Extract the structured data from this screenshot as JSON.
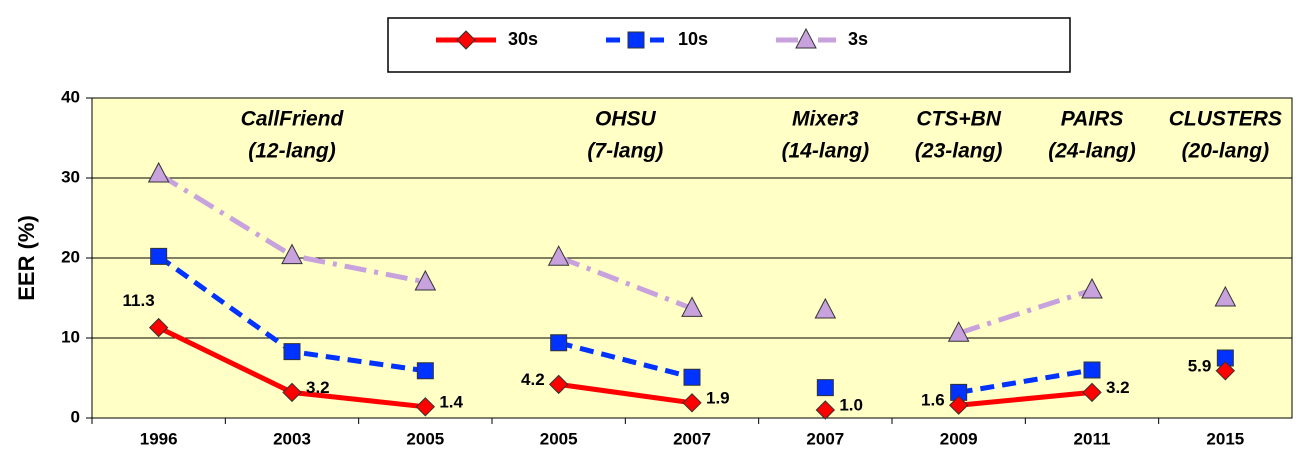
{
  "chart_data": {
    "type": "line",
    "y_label": "EER (%)",
    "categories": [
      "1996",
      "2003",
      "2005",
      "2005",
      "2007",
      "2007",
      "2009",
      "2011",
      "2015"
    ],
    "segments": [
      [
        0,
        2
      ],
      [
        3,
        4
      ],
      [
        5,
        5
      ],
      [
        6,
        7
      ],
      [
        8,
        8
      ]
    ],
    "annotations": [
      [
        "CallFriend",
        "(12-lang)"
      ],
      [
        "OHSU",
        "(7-lang)"
      ],
      [
        "Mixer3",
        "(14-lang)"
      ],
      [
        "CTS+BN",
        "(23-lang)"
      ],
      [
        "PAIRS",
        "(24-lang)"
      ],
      [
        "CLUSTERS",
        "(20-lang)"
      ]
    ],
    "series": [
      {
        "name": "30s",
        "color": "#ff0000",
        "marker": "diamond",
        "line_style": "solid",
        "values": [
          11.3,
          3.2,
          1.4,
          4.2,
          1.9,
          1.0,
          1.6,
          3.2,
          5.9
        ],
        "value_labels": [
          "11.3",
          "3.2",
          "1.4",
          "4.2",
          "1.9",
          "1.0",
          "1.6",
          "3.2",
          "5.9"
        ]
      },
      {
        "name": "10s",
        "color": "#0033ff",
        "marker": "square",
        "line_style": "dashed",
        "values": [
          20.2,
          8.3,
          5.9,
          9.4,
          5.1,
          3.8,
          3.2,
          6.0,
          7.5
        ]
      },
      {
        "name": "3s",
        "color": "#c8a2dc",
        "marker": "triangle",
        "line_style": "dashdot",
        "values": [
          30.5,
          20.3,
          17.0,
          20.1,
          13.7,
          13.5,
          10.6,
          16.0,
          15.0
        ]
      }
    ],
    "ylim": [
      0,
      40
    ],
    "yticks": [
      0,
      10,
      20,
      30,
      40
    ],
    "grid": true,
    "legend": "top"
  }
}
